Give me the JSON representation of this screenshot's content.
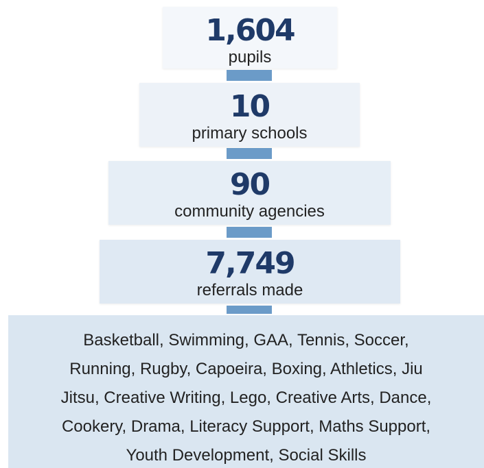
{
  "stats": [
    {
      "value": "1,604",
      "label": "pupils"
    },
    {
      "value": "10",
      "label": "primary schools"
    },
    {
      "value": "90",
      "label": "community agencies"
    },
    {
      "value": "7,749",
      "label": "referrals made"
    }
  ],
  "activities": {
    "lines": [
      "Basketball, Swimming, GAA, Tennis, Soccer,",
      "Running, Rugby, Capoeira, Boxing, Athletics, Jiu",
      "Jitsu, Creative Writing, Lego, Creative Arts, Dance,",
      "Cookery, Drama, Literacy Support, Maths Support,",
      "Youth Development, Social Skills"
    ]
  }
}
